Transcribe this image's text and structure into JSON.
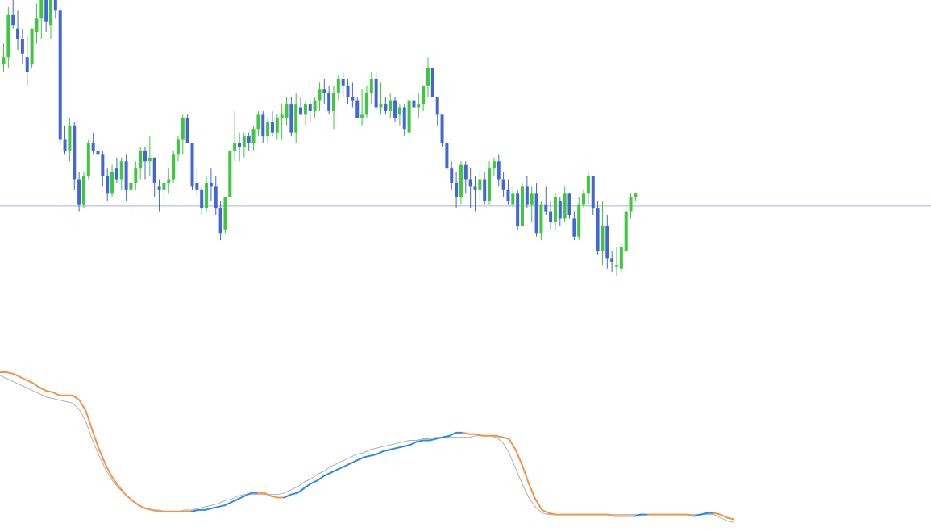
{
  "colors": {
    "bull": "#3ec83e",
    "bear": "#4466d4",
    "price_line": "#a9b2d4",
    "signal_line": "#b0b0b0",
    "indicator_down": "#f2944a",
    "indicator_up": "#2e8ae6"
  },
  "chart_data": [
    {
      "type": "candlestick",
      "grid": false,
      "ylim": [
        0,
        100
      ],
      "current_price_line": 42.5,
      "ohlc": [
        [
          82,
          88,
          80,
          84
        ],
        [
          84,
          98,
          81,
          96
        ],
        [
          96,
          102,
          92,
          93
        ],
        [
          92,
          97,
          86,
          89
        ],
        [
          89,
          92,
          82,
          85
        ],
        [
          84,
          90,
          76,
          80
        ],
        [
          82,
          92,
          81,
          92
        ],
        [
          91,
          99,
          88,
          95
        ],
        [
          95,
          104,
          89,
          103
        ],
        [
          103,
          108,
          91,
          94
        ],
        [
          93,
          106,
          89,
          105
        ],
        [
          105,
          107,
          95,
          97
        ],
        [
          97,
          98,
          60,
          61
        ],
        [
          61,
          65,
          57,
          58
        ],
        [
          58,
          67,
          55,
          65
        ],
        [
          65,
          66,
          47,
          50
        ],
        [
          50,
          52,
          41,
          43
        ],
        [
          43,
          52,
          42,
          51
        ],
        [
          51,
          61,
          50,
          60
        ],
        [
          60,
          63,
          57,
          58
        ],
        [
          58,
          62,
          54,
          57
        ],
        [
          57,
          58,
          48,
          51
        ],
        [
          51,
          53,
          44,
          46
        ],
        [
          46,
          54,
          45,
          52
        ],
        [
          53,
          56,
          49,
          50
        ],
        [
          50,
          56,
          47,
          55
        ],
        [
          55,
          57,
          44,
          47
        ],
        [
          47,
          51,
          40,
          49
        ],
        [
          49,
          55,
          47,
          53
        ],
        [
          53,
          59,
          50,
          58
        ],
        [
          58,
          59,
          50,
          55
        ],
        [
          55,
          62,
          51,
          56
        ],
        [
          56,
          56,
          45,
          49
        ],
        [
          48,
          50,
          41,
          47
        ],
        [
          47,
          51,
          43,
          49
        ],
        [
          49,
          53,
          46,
          50
        ],
        [
          50,
          58,
          49,
          57
        ],
        [
          57,
          62,
          55,
          61
        ],
        [
          61,
          68,
          57,
          67
        ],
        [
          67,
          68,
          60,
          60
        ],
        [
          60,
          60,
          47,
          48
        ],
        [
          49,
          53,
          45,
          47
        ],
        [
          47,
          48,
          40,
          42
        ],
        [
          42,
          51,
          41,
          49
        ],
        [
          49,
          53,
          44,
          48
        ],
        [
          48,
          51,
          40,
          42
        ],
        [
          42,
          44,
          33,
          35
        ],
        [
          36,
          44,
          35,
          45
        ],
        [
          45,
          58,
          45,
          58
        ],
        [
          58,
          69,
          55,
          60
        ],
        [
          60,
          63,
          55,
          59
        ],
        [
          59,
          63,
          56,
          62
        ],
        [
          62,
          63,
          58,
          60
        ],
        [
          60,
          65,
          58,
          64
        ],
        [
          64,
          69,
          62,
          68
        ],
        [
          68,
          69,
          60,
          62
        ],
        [
          62,
          67,
          60,
          66
        ],
        [
          66,
          69,
          62,
          63
        ],
        [
          63,
          68,
          61,
          67
        ],
        [
          67,
          71,
          61,
          68
        ],
        [
          67,
          73,
          65,
          71
        ],
        [
          71,
          73,
          62,
          63
        ],
        [
          63,
          74,
          60,
          71
        ],
        [
          70,
          73,
          68,
          68
        ],
        [
          68,
          72,
          65,
          71
        ],
        [
          71,
          72,
          66,
          69
        ],
        [
          69,
          73,
          67,
          72
        ],
        [
          72,
          77,
          69,
          75
        ],
        [
          75,
          78,
          71,
          74
        ],
        [
          74,
          76,
          68,
          69
        ],
        [
          69,
          76,
          64,
          74
        ],
        [
          74,
          79,
          72,
          78
        ],
        [
          78,
          80,
          73,
          76
        ],
        [
          76,
          78,
          71,
          73
        ],
        [
          73,
          77,
          70,
          72
        ],
        [
          72,
          73,
          67,
          67
        ],
        [
          67,
          75,
          65,
          68
        ],
        [
          68,
          76,
          67,
          74
        ],
        [
          74,
          80,
          71,
          78
        ],
        [
          78,
          80,
          69,
          70
        ],
        [
          70,
          77,
          68,
          71
        ],
        [
          71,
          73,
          68,
          69
        ],
        [
          69,
          74,
          67,
          72
        ],
        [
          72,
          73,
          66,
          67
        ],
        [
          68,
          71,
          65,
          70
        ],
        [
          70,
          71,
          62,
          64
        ],
        [
          63,
          72,
          62,
          72
        ],
        [
          72,
          74,
          68,
          70
        ],
        [
          70,
          74,
          67,
          71
        ],
        [
          71,
          76,
          69,
          76
        ],
        [
          76,
          84,
          73,
          81
        ],
        [
          81,
          81,
          73,
          73
        ],
        [
          73,
          73,
          65,
          68
        ],
        [
          68,
          68,
          59,
          60
        ],
        [
          60,
          61,
          52,
          53
        ],
        [
          53,
          55,
          47,
          49
        ],
        [
          49,
          52,
          42,
          45
        ],
        [
          45,
          55,
          43,
          54
        ],
        [
          54,
          55,
          46,
          50
        ],
        [
          50,
          53,
          42,
          48
        ],
        [
          48,
          51,
          41,
          47
        ],
        [
          47,
          52,
          44,
          50
        ],
        [
          50,
          52,
          43,
          44
        ],
        [
          44,
          55,
          43,
          53
        ],
        [
          53,
          56,
          51,
          55
        ],
        [
          55,
          57,
          48,
          50
        ],
        [
          50,
          52,
          45,
          47
        ],
        [
          47,
          50,
          43,
          44
        ],
        [
          43,
          48,
          42,
          46
        ],
        [
          46,
          47,
          36,
          37
        ],
        [
          37,
          49,
          37,
          48
        ],
        [
          48,
          51,
          42,
          43
        ],
        [
          43,
          48,
          38,
          46
        ],
        [
          46,
          49,
          34,
          35
        ],
        [
          35,
          44,
          33,
          43
        ],
        [
          43,
          48,
          40,
          41
        ],
        [
          41,
          44,
          36,
          38
        ],
        [
          38,
          46,
          36,
          45
        ],
        [
          44,
          45,
          37,
          39
        ],
        [
          39,
          48,
          38,
          46
        ],
        [
          46,
          46,
          39,
          40
        ],
        [
          39,
          41,
          33,
          34
        ],
        [
          34,
          45,
          33,
          43
        ],
        [
          43,
          47,
          42,
          46
        ],
        [
          46,
          52,
          43,
          51
        ],
        [
          51,
          51,
          40,
          42
        ],
        [
          42,
          44,
          29,
          30
        ],
        [
          30,
          44,
          26,
          37
        ],
        [
          37,
          40,
          25,
          28
        ],
        [
          28,
          30,
          24,
          27
        ],
        [
          26,
          31,
          23,
          26
        ],
        [
          25,
          32,
          24,
          31
        ],
        [
          30,
          43,
          30,
          41
        ],
        [
          41,
          46,
          39,
          45
        ],
        [
          45,
          46,
          44,
          46
        ]
      ]
    },
    {
      "type": "line",
      "grid": false,
      "ylim": [
        0,
        100
      ],
      "series": [
        {
          "role": "main",
          "values": [
            100,
            100,
            99,
            97,
            95,
            93,
            90,
            88,
            87,
            85,
            85,
            85,
            82,
            75,
            62,
            50,
            40,
            32,
            26,
            21,
            17,
            14,
            12,
            11,
            10,
            10,
            10,
            10,
            10,
            10,
            11,
            11,
            12,
            13,
            14,
            16,
            18,
            20,
            22,
            22,
            22,
            20,
            19,
            19,
            21,
            22,
            25,
            28,
            30,
            33,
            35,
            37,
            39,
            41,
            43,
            45,
            46,
            47,
            49,
            50,
            51,
            52,
            53,
            55,
            56,
            56,
            57,
            58,
            59,
            61,
            61,
            60,
            60,
            59,
            59,
            59,
            58,
            57,
            50,
            40,
            28,
            18,
            11,
            9,
            8,
            8,
            8,
            8,
            8,
            8,
            8,
            8,
            8,
            7,
            7,
            7,
            7,
            8,
            8,
            8,
            8,
            8,
            8,
            8,
            8,
            7,
            8,
            9,
            9,
            8,
            6,
            5
          ]
        },
        {
          "role": "signal",
          "values": [
            98,
            96,
            94,
            92,
            90,
            88,
            86,
            84,
            83,
            82,
            81,
            80,
            76,
            68,
            56,
            46,
            37,
            30,
            25,
            21,
            17,
            14,
            12,
            11,
            11,
            10,
            10,
            10,
            11,
            11,
            12,
            13,
            14,
            15,
            17,
            18,
            20,
            21,
            21,
            21,
            21,
            21,
            21,
            22,
            24,
            26,
            29,
            31,
            34,
            36,
            39,
            41,
            43,
            45,
            47,
            48,
            50,
            51,
            52,
            53,
            54,
            55,
            56,
            56,
            57,
            57,
            58,
            58,
            58,
            58,
            58,
            58,
            59,
            59,
            59,
            58,
            55,
            48,
            38,
            28,
            19,
            13,
            9,
            8,
            8,
            8,
            8,
            8,
            8,
            8,
            8,
            8,
            8,
            8,
            8,
            8,
            8,
            8,
            8,
            8,
            8,
            8,
            8,
            8,
            8,
            8,
            8,
            8,
            8,
            6,
            4,
            3
          ]
        }
      ]
    }
  ]
}
